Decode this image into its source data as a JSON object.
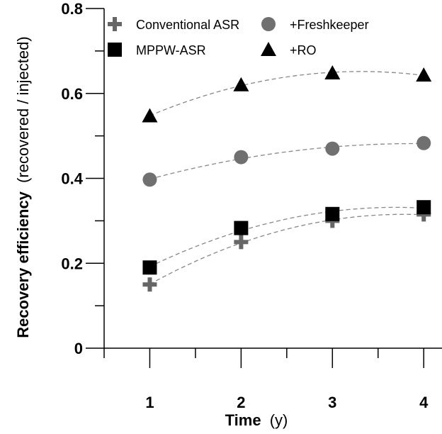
{
  "chart_data": {
    "type": "scatter",
    "x": [
      1,
      2,
      3,
      4
    ],
    "xlim": [
      0.5,
      4.2
    ],
    "ylim": [
      0,
      0.8
    ],
    "x_ticks": [
      "1",
      "2",
      "3",
      "4"
    ],
    "y_ticks": [
      "0",
      "0.2",
      "0.4",
      "0.6",
      "0.8"
    ],
    "xlabel_main": "Time",
    "xlabel_unit": "(y)",
    "ylabel_main": "Recovery efficiency",
    "ylabel_unit": "(recovered / injected)",
    "grid": false,
    "legend_position": "top-left",
    "trendline": "dashed",
    "trendline_color": "#888888",
    "series": [
      {
        "name": "Conventional ASR",
        "marker": "plus-icon",
        "color": "#666666",
        "values": [
          0.15,
          0.25,
          0.3,
          0.315
        ]
      },
      {
        "name": "+Freshkeeper",
        "marker": "circle-icon",
        "color": "#707070",
        "values": [
          0.397,
          0.45,
          0.47,
          0.483
        ]
      },
      {
        "name": "MPPW-ASR",
        "marker": "square-icon",
        "color": "#000000",
        "values": [
          0.19,
          0.283,
          0.316,
          0.332
        ]
      },
      {
        "name": "+RO",
        "marker": "triangle-icon",
        "color": "#000000",
        "values": [
          0.547,
          0.62,
          0.648,
          0.643
        ]
      }
    ]
  }
}
